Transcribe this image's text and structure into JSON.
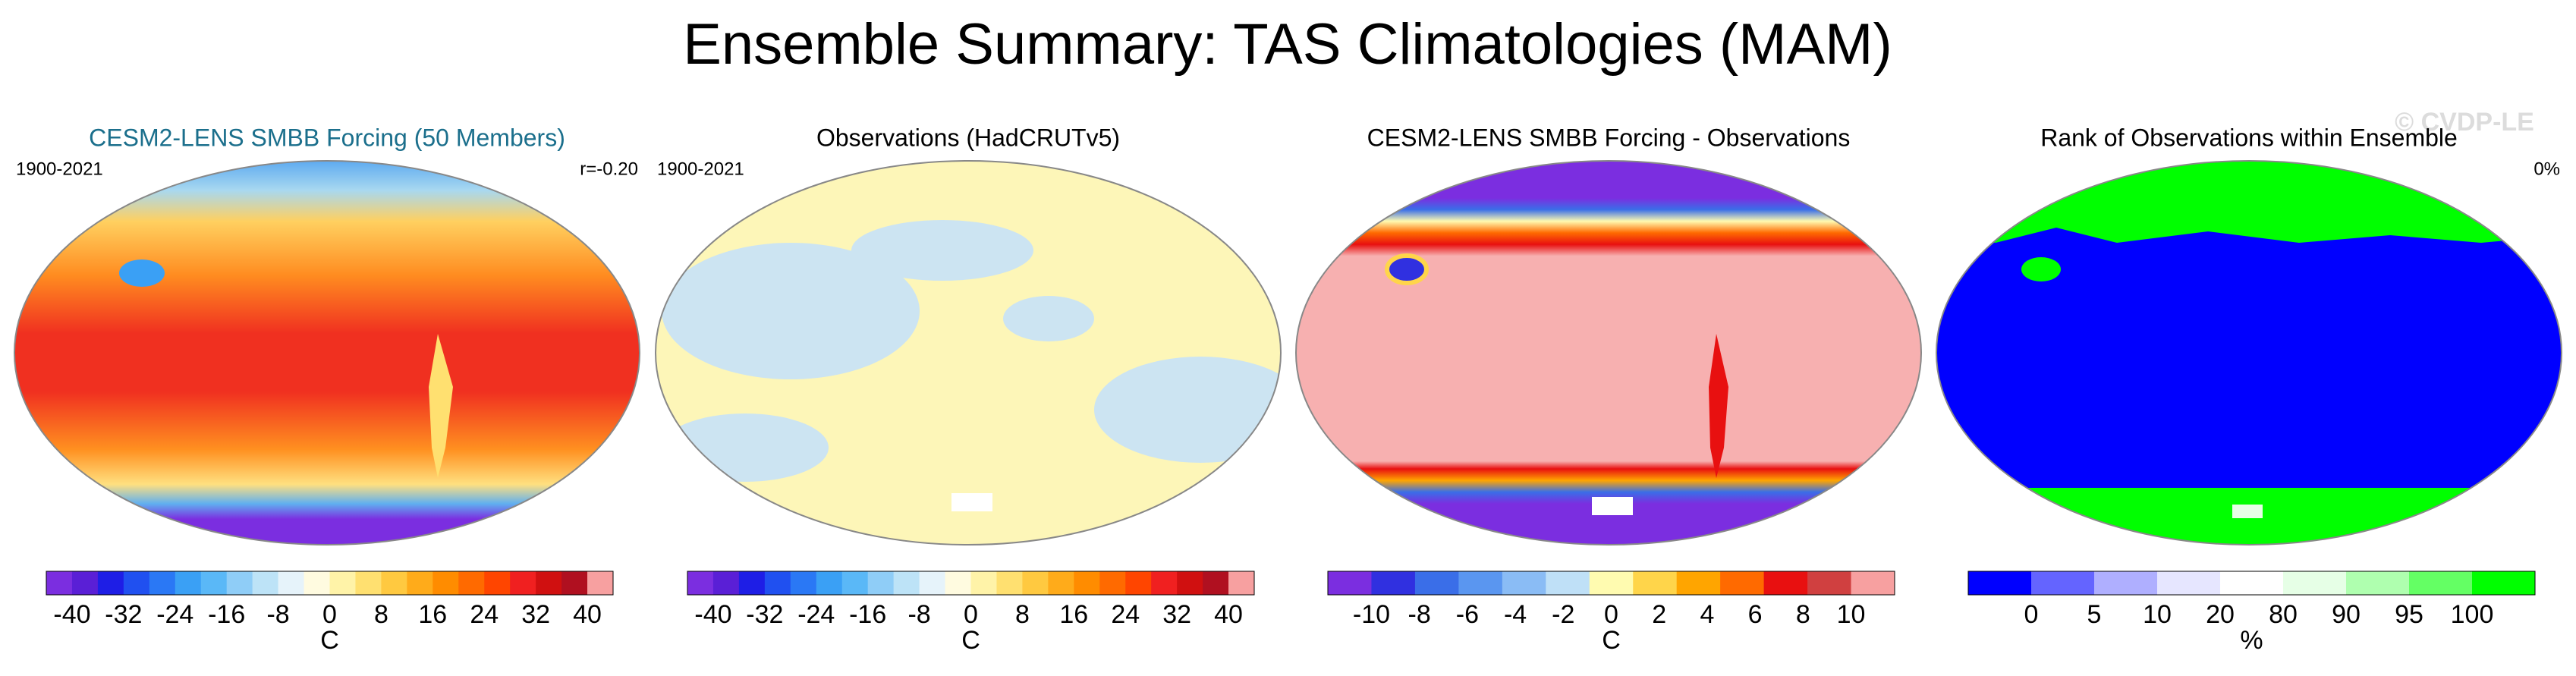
{
  "title": "Ensemble Summary: TAS Climatologies (MAM)",
  "watermark": "© CVDP-LE",
  "panels": [
    {
      "title": "CESM2-LENS SMBB Forcing (50 Members)",
      "title_color": "#1b6f8c",
      "left_label": "1900-2021",
      "right_label": "r=-0.20",
      "colorbar": {
        "ticks": [
          -40,
          -32,
          -24,
          -16,
          -8,
          0,
          8,
          16,
          24,
          32,
          40
        ],
        "unit": "C",
        "colors": [
          "#7b2ee0",
          "#5a1fd6",
          "#1e1ee6",
          "#2050f0",
          "#2a78f5",
          "#3aa0f5",
          "#5ab8f7",
          "#8fcdf7",
          "#bde3f7",
          "#e6f3fa",
          "#fffbe0",
          "#fff3a8",
          "#ffe070",
          "#ffc940",
          "#ffab1a",
          "#ff8c00",
          "#ff6a00",
          "#ff4500",
          "#f02020",
          "#d01010",
          "#b01020",
          "#f7a0a0"
        ]
      }
    },
    {
      "title": "Observations (HadCRUTv5)",
      "title_color": "#000000",
      "left_label": "1900-2021",
      "colorbar": {
        "ticks": [
          -40,
          -32,
          -24,
          -16,
          -8,
          0,
          8,
          16,
          24,
          32,
          40
        ],
        "unit": "C",
        "colors": [
          "#7b2ee0",
          "#5a1fd6",
          "#1e1ee6",
          "#2050f0",
          "#2a78f5",
          "#3aa0f5",
          "#5ab8f7",
          "#8fcdf7",
          "#bde3f7",
          "#e6f3fa",
          "#fffbe0",
          "#fff3a8",
          "#ffe070",
          "#ffc940",
          "#ffab1a",
          "#ff8c00",
          "#ff6a00",
          "#ff4500",
          "#f02020",
          "#d01010",
          "#b01020",
          "#f7a0a0"
        ]
      }
    },
    {
      "title": "CESM2-LENS SMBB Forcing - Observations",
      "title_color": "#000000",
      "colorbar": {
        "ticks": [
          -10,
          -8,
          -6,
          -4,
          -2,
          0,
          2,
          4,
          6,
          8,
          10
        ],
        "unit": "C",
        "colors": [
          "#7b2ee0",
          "#3030e0",
          "#3a6ee8",
          "#5a96f0",
          "#8abcf5",
          "#bfe0f7",
          "#fffbb0",
          "#ffd54a",
          "#ffa500",
          "#ff6a00",
          "#e81010",
          "#d04040",
          "#f7a0a0"
        ]
      }
    },
    {
      "title": "Rank of Observations within Ensemble",
      "title_color": "#000000",
      "right_label": "0%",
      "colorbar": {
        "ticks": [
          0,
          5,
          10,
          20,
          80,
          90,
          95,
          100
        ],
        "unit": "%",
        "colors": [
          "#0000ff",
          "#6464ff",
          "#afafff",
          "#e6e6ff",
          "#ffffff",
          "#e6ffe6",
          "#afffaf",
          "#64ff64",
          "#00ff00"
        ]
      }
    }
  ]
}
